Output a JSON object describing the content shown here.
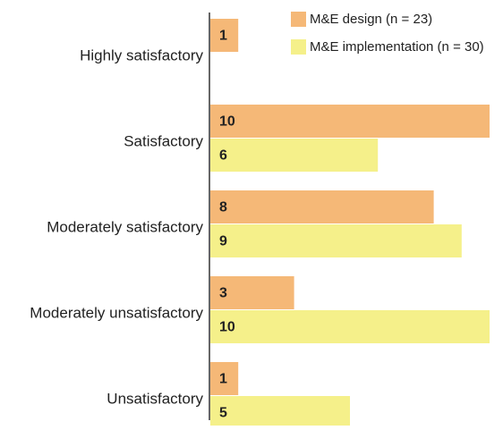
{
  "chart_data": {
    "type": "hbar",
    "categories": [
      "Highly satisfactory",
      "Satisfactory",
      "Moderately satisfactory",
      "Moderately unsatisfactory",
      "Unsatisfactory"
    ],
    "series": [
      {
        "name": "M&E design (n = 23)",
        "color": "#f5b877",
        "values": [
          1,
          10,
          8,
          3,
          1
        ]
      },
      {
        "name": "M&E implementation (n = 30)",
        "color": "#f5f08a",
        "values": [
          null,
          6,
          9,
          10,
          5
        ]
      }
    ],
    "xlim": [
      0,
      10
    ],
    "legend": "top-right"
  }
}
